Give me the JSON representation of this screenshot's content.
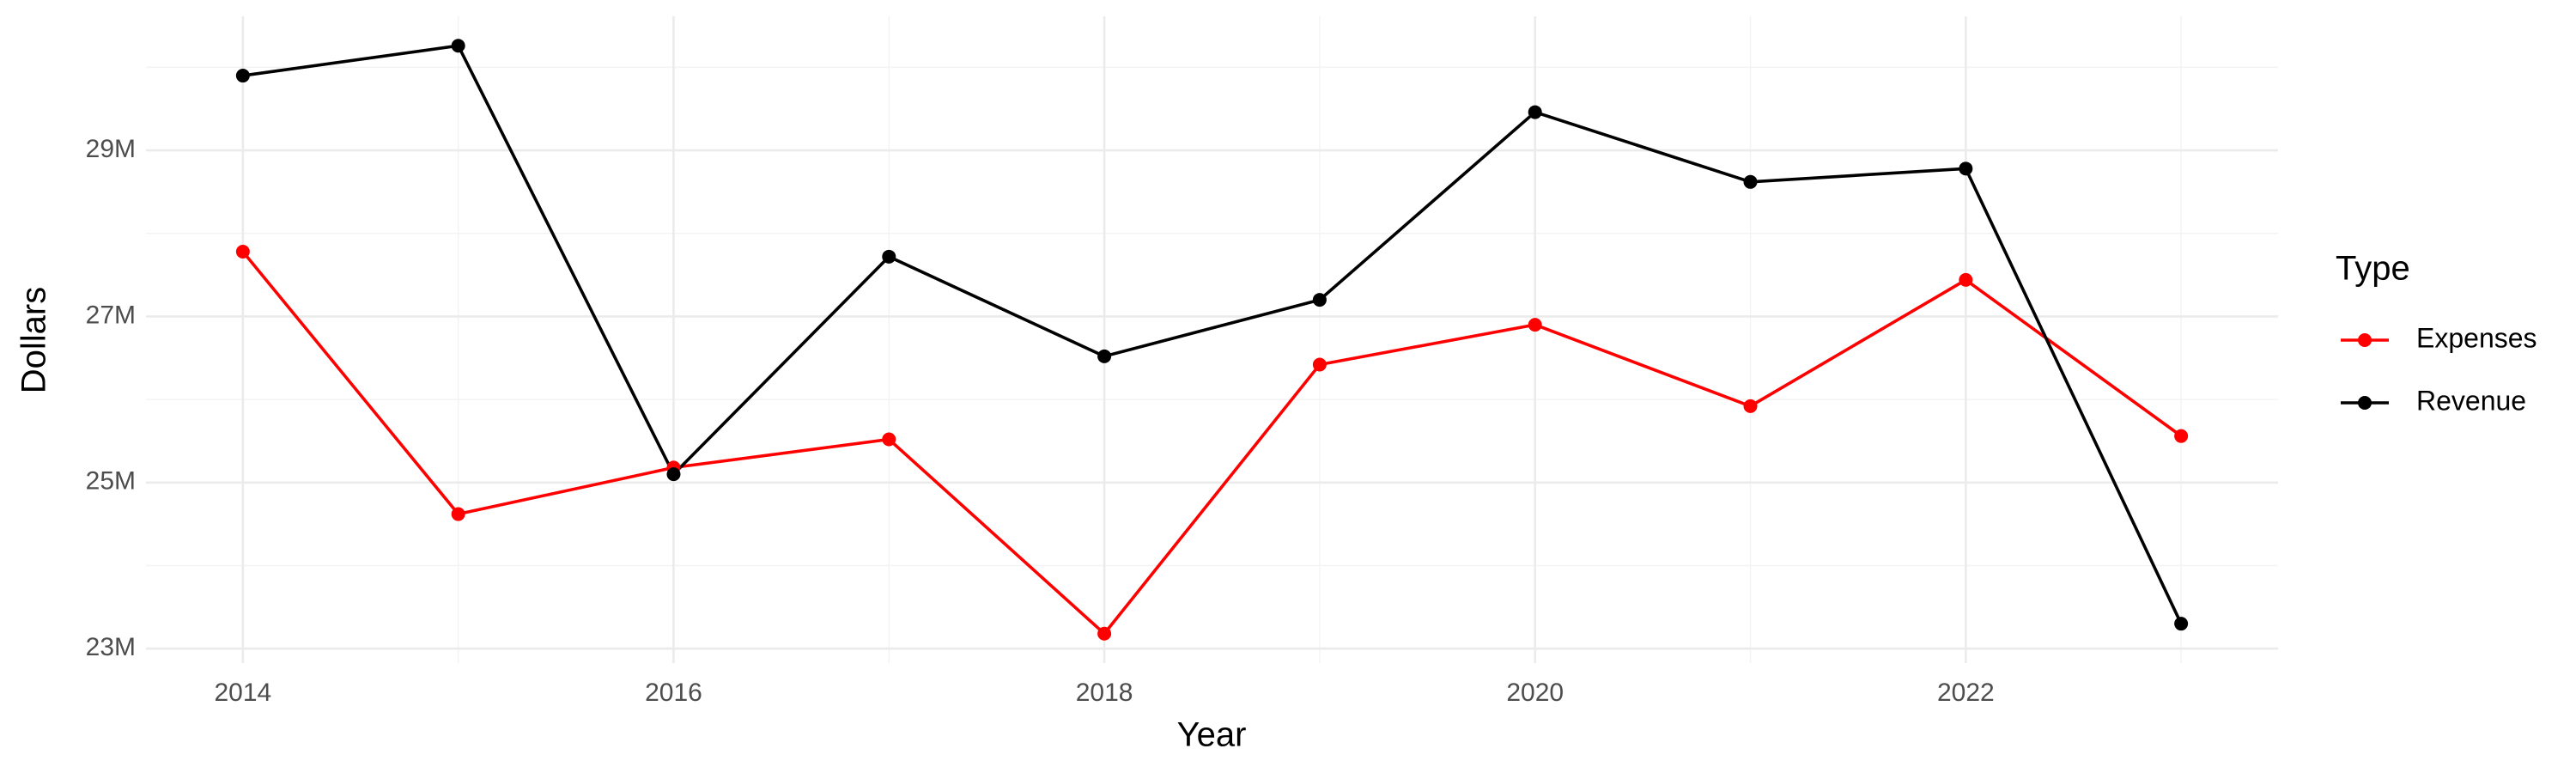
{
  "chart_data": {
    "type": "line",
    "x_label": "Year",
    "y_label": "Dollars",
    "x": [
      2014,
      2015,
      2016,
      2017,
      2018,
      2019,
      2020,
      2021,
      2022,
      2023
    ],
    "series": [
      {
        "name": "Expenses",
        "color": "#ff0000",
        "values": [
          27780000,
          24620000,
          25180000,
          25520000,
          23180000,
          26420000,
          26900000,
          25920000,
          27440000,
          25560000
        ]
      },
      {
        "name": "Revenue",
        "color": "#000000",
        "values": [
          29900000,
          30260000,
          25100000,
          27720000,
          26520000,
          27200000,
          29460000,
          28620000,
          28780000,
          23300000
        ]
      }
    ],
    "xlim": [
      2013.55,
      2023.45
    ],
    "xticks": [
      2014,
      2016,
      2018,
      2020,
      2022
    ],
    "ylim": [
      22826000,
      30614000
    ],
    "yticks": [
      {
        "value": 23000000,
        "label": "23M"
      },
      {
        "value": 25000000,
        "label": "25M"
      },
      {
        "value": 27000000,
        "label": "27M"
      },
      {
        "value": 29000000,
        "label": "29M"
      }
    ],
    "grid": true,
    "legend": {
      "title": "Type",
      "position": "right"
    }
  }
}
